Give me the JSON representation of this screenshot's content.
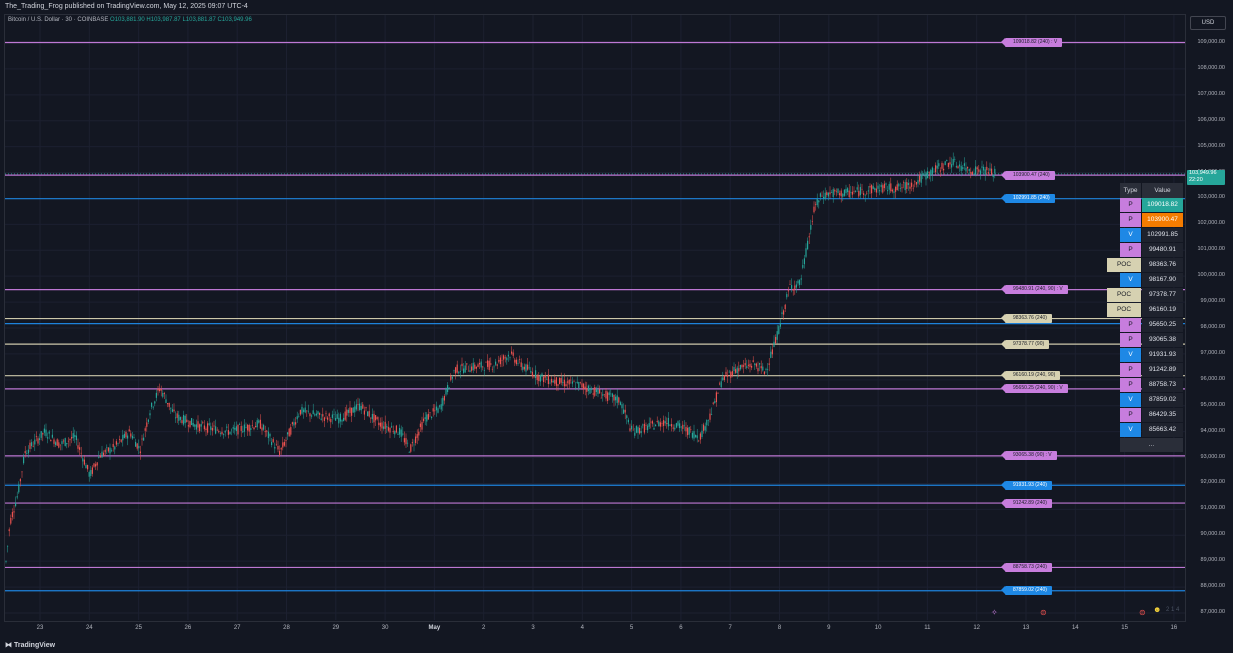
{
  "header": {
    "publisher": "The_Trading_Frog published on TradingView.com, May 12, 2025 09:07 UTC-4"
  },
  "symbol": {
    "title": "Bitcoin / U.S. Dollar · 30 · COINBASE",
    "ohlc": "O103,881.90 H103,987.87 L103,881.87 C103,949.96"
  },
  "currency": "USD",
  "current_price": {
    "value": "103,949.96",
    "countdown": "22:20"
  },
  "price_axis": [
    "109,000.00",
    "108,000.00",
    "107,000.00",
    "106,000.00",
    "105,000.00",
    "104,000.00",
    "103,000.00",
    "102,000.00",
    "101,000.00",
    "100,000.00",
    "99,000.00",
    "98,000.00",
    "97,000.00",
    "96,000.00",
    "95,000.00",
    "94,000.00",
    "93,000.00",
    "92,000.00",
    "91,000.00",
    "90,000.00",
    "89,000.00",
    "88,000.00",
    "87,000.00"
  ],
  "date_axis": [
    "23",
    "24",
    "25",
    "26",
    "27",
    "28",
    "29",
    "30",
    "May",
    "2",
    "3",
    "4",
    "5",
    "6",
    "7",
    "8",
    "9",
    "10",
    "11",
    "12",
    "13",
    "14",
    "15",
    "16"
  ],
  "colors": {
    "pivot": "#c77ddd",
    "volume": "#1e88e5",
    "poc": "#d6d1b1",
    "up": "#26a69a",
    "down": "#ef5350",
    "background": "#131722"
  },
  "levels": [
    {
      "price": 109018.82,
      "kind": "P",
      "label": "109018.82 (240)  : V"
    },
    {
      "price": 103900.47,
      "kind": "P",
      "label": "103900.47 (240)"
    },
    {
      "price": 102991.85,
      "kind": "V",
      "label": "102991.85 (240)"
    },
    {
      "price": 99480.91,
      "kind": "P",
      "label": "99480.91 (240, 90)  : V"
    },
    {
      "price": 98363.76,
      "kind": "POC",
      "label": "98363.76 (240)"
    },
    {
      "price": 98167.9,
      "kind": "V",
      "label": ""
    },
    {
      "price": 97378.77,
      "kind": "POC",
      "label": "97378.77 (90)"
    },
    {
      "price": 96160.19,
      "kind": "POC",
      "label": "96160.19 (240, 90)"
    },
    {
      "price": 95650.25,
      "kind": "P",
      "label": "95650.25 (240, 90)  : V"
    },
    {
      "price": 93065.38,
      "kind": "P",
      "label": "93065.38 (90)  : V"
    },
    {
      "price": 91931.93,
      "kind": "V",
      "label": "91931.93 (240)"
    },
    {
      "price": 91242.89,
      "kind": "P",
      "label": "91242.89 (240)"
    },
    {
      "price": 88758.73,
      "kind": "P",
      "label": "88758.73 (240)"
    },
    {
      "price": 87859.02,
      "kind": "V",
      "label": "87859.02 (240)"
    }
  ],
  "table": {
    "col_type": "Type",
    "col_value": "Value",
    "rows": [
      {
        "type": "P",
        "value": "109018.82",
        "highlight": "#26a69a"
      },
      {
        "type": "P",
        "value": "103900.47",
        "highlight": "#f57c00"
      },
      {
        "type": "V",
        "value": "102991.85"
      },
      {
        "type": "P",
        "value": "99480.91"
      },
      {
        "type": "POC",
        "value": "98363.76"
      },
      {
        "type": "V",
        "value": "98167.90"
      },
      {
        "type": "POC",
        "value": "97378.77"
      },
      {
        "type": "POC",
        "value": "96160.19"
      },
      {
        "type": "P",
        "value": "95650.25"
      },
      {
        "type": "P",
        "value": "93065.38"
      },
      {
        "type": "V",
        "value": "91931.93"
      },
      {
        "type": "P",
        "value": "91242.89"
      },
      {
        "type": "P",
        "value": "88758.73"
      },
      {
        "type": "V",
        "value": "87859.02"
      },
      {
        "type": "P",
        "value": "86429.35"
      },
      {
        "type": "V",
        "value": "85663.42"
      }
    ],
    "more": "..."
  },
  "footer": {
    "brand": "TradingView",
    "marker_text": "2 1 4"
  }
}
